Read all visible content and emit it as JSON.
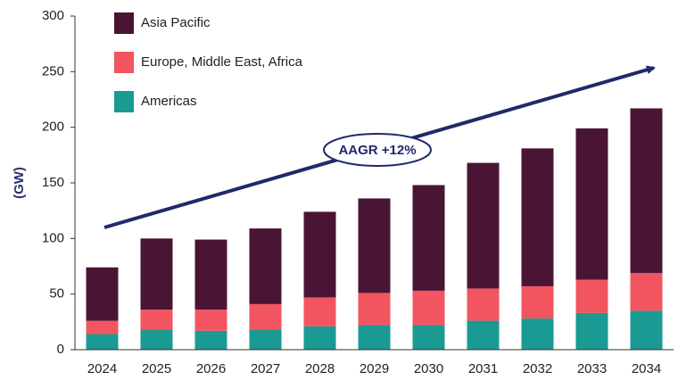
{
  "chart_data": {
    "type": "stacked_bar",
    "y_label": "(GW)",
    "annotation": "AAGR +12%",
    "categories": [
      "2024",
      "2025",
      "2026",
      "2027",
      "2028",
      "2029",
      "2030",
      "2031",
      "2032",
      "2033",
      "2034"
    ],
    "series": [
      {
        "name": "Americas",
        "color": "#1a9a93",
        "values": [
          14,
          18,
          17,
          18,
          21,
          22,
          22,
          26,
          28,
          33,
          35
        ]
      },
      {
        "name": "Europe, Middle East, Africa",
        "color": "#f25560",
        "values": [
          12,
          18,
          19,
          23,
          26,
          29,
          31,
          29,
          29,
          30,
          34
        ]
      },
      {
        "name": "Asia Pacific",
        "color": "#4a1534",
        "values": [
          48,
          64,
          63,
          68,
          77,
          85,
          95,
          113,
          124,
          136,
          148
        ]
      }
    ],
    "ylim": [
      0,
      300
    ],
    "yticks": [
      0,
      50,
      100,
      150,
      200,
      250,
      300
    ],
    "legend": "top-left"
  }
}
